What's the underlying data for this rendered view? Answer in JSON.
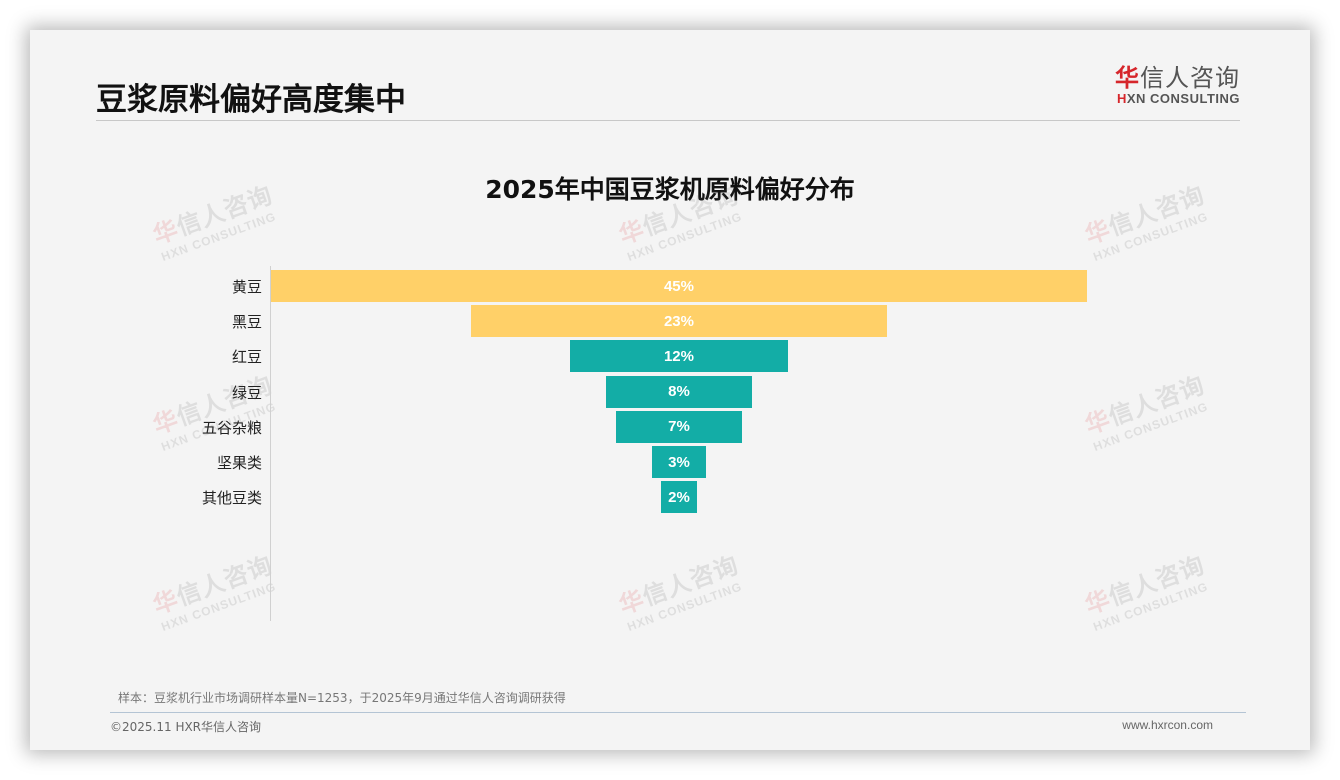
{
  "page": {
    "title": "豆浆原料偏好高度集中",
    "logo": {
      "cn_first": "华",
      "cn_rest": "信人咨询",
      "en_first": "H",
      "en_rest": "XN CONSULTING"
    },
    "watermark": {
      "cn_first": "华",
      "cn_rest": "信人咨询",
      "en": "HXN CONSULTING"
    },
    "note": "样本：豆浆机行业市场调研样本量N=1253，于2025年9月通过华信人咨询调研获得",
    "copyright": "©2025.11 HXR华信人咨询",
    "website": "www.hxrcon.com"
  },
  "chart_data": {
    "type": "bar",
    "subtype": "funnel",
    "title": "2025年中国豆浆机原料偏好分布",
    "categories": [
      "黄豆",
      "黑豆",
      "红豆",
      "绿豆",
      "五谷杂粮",
      "坚果类",
      "其他豆类"
    ],
    "values": [
      45,
      23,
      12,
      8,
      7,
      3,
      2
    ],
    "labels": [
      "45%",
      "23%",
      "12%",
      "8%",
      "7%",
      "3%",
      "2%"
    ],
    "unit": "%",
    "colors": [
      "#FFD068",
      "#FFD068",
      "#13ADA6",
      "#13ADA6",
      "#13ADA6",
      "#13ADA6",
      "#13ADA6"
    ],
    "xlabel": "",
    "ylabel": "",
    "grid": false,
    "legend": "none",
    "orientation": "horizontal-centered"
  }
}
